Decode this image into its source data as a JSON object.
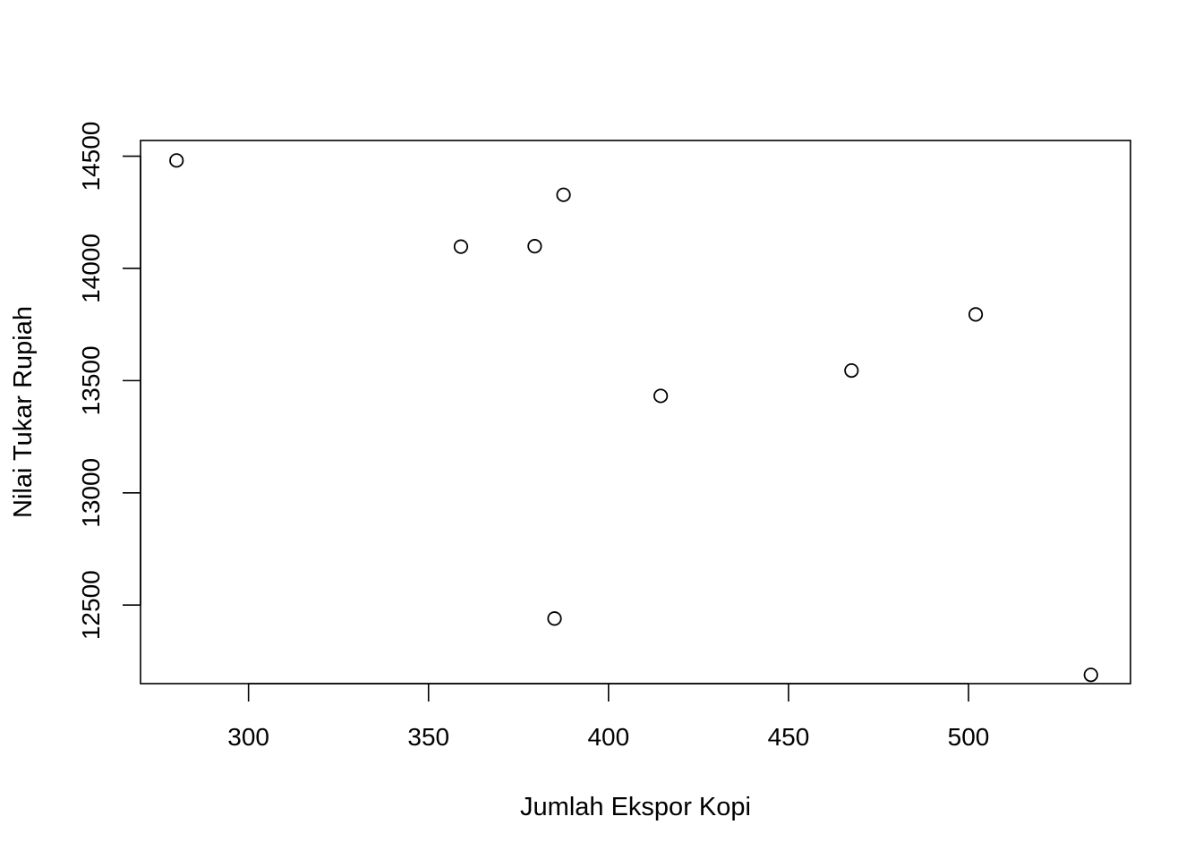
{
  "chart_data": {
    "type": "scatter",
    "title": "",
    "xlabel": "Jumlah Ekspor Kopi",
    "ylabel": "Nilai Tukar Rupiah",
    "xlim": [
      270,
      545
    ],
    "ylim": [
      12150,
      14570
    ],
    "x_ticks": [
      300,
      350,
      400,
      450,
      500
    ],
    "x_tick_labels": [
      "300",
      "350",
      "400",
      "450",
      "500"
    ],
    "y_ticks": [
      12500,
      13000,
      13500,
      14000,
      14500
    ],
    "y_tick_labels": [
      "12500",
      "13000",
      "13500",
      "14000",
      "14500"
    ],
    "marker": "open-circle",
    "grid": false,
    "box": true,
    "points": [
      {
        "x": 280,
        "y": 14481
      },
      {
        "x": 359,
        "y": 14097
      },
      {
        "x": 379.5,
        "y": 14099
      },
      {
        "x": 387.5,
        "y": 14328
      },
      {
        "x": 414.5,
        "y": 13432
      },
      {
        "x": 385,
        "y": 12440
      },
      {
        "x": 467.5,
        "y": 13545
      },
      {
        "x": 502,
        "y": 13795
      },
      {
        "x": 534,
        "y": 12189
      }
    ]
  }
}
